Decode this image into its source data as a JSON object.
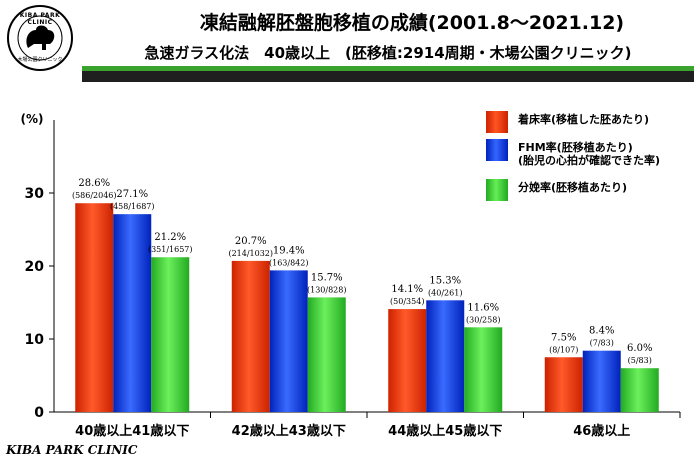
{
  "header": {
    "logo_text": "KIBA PARK CLINIC",
    "logo_subtext": "木場公園クリニック",
    "title": "凍結融解胚盤胞移植の成績(2001.8〜2021.12)",
    "subtitle": "急速ガラス化法　40歳以上　(胚移植:2914周期・木場公園クリニック)"
  },
  "footer": {
    "text": "KIBA PARK CLINIC"
  },
  "colors": {
    "series1": "#ff3300",
    "series2": "#0033ff",
    "series3": "#33cc33",
    "stripe_green": "#3aa32e",
    "stripe_dark": "#1f1f1f"
  },
  "legend": [
    {
      "line1": "着床率(移植した胚あたり)",
      "line2": ""
    },
    {
      "line1": "FHM率(胚移植あたり)",
      "line2": "(胎児の心拍が確認できた率)"
    },
    {
      "line1": "分娩率(胚移植あたり)",
      "line2": ""
    }
  ],
  "chart_data": {
    "type": "bar",
    "ylabel": "(%)",
    "ylim": [
      0,
      40
    ],
    "yticks": [
      0,
      10,
      20,
      30
    ],
    "grid": false,
    "legend_position": "top-right",
    "categories": [
      "40歳以上41歳以下",
      "42歳以上43歳以下",
      "44歳以上45歳以下",
      "46歳以上"
    ],
    "series": [
      {
        "name": "着床率(移植した胚あたり)",
        "color": "#ff3300",
        "values": [
          28.6,
          20.7,
          14.1,
          7.5
        ],
        "labels": [
          "28.6%",
          "20.7%",
          "14.1%",
          "7.5%"
        ],
        "counts": [
          "(586/2046)",
          "(214/1032)",
          "(50/354)",
          "(8/107)"
        ]
      },
      {
        "name": "FHM率(胚移植あたり)",
        "color": "#0033ff",
        "values": [
          27.1,
          19.4,
          15.3,
          8.4
        ],
        "labels": [
          "27.1%",
          "19.4%",
          "15.3%",
          "8.4%"
        ],
        "counts": [
          "(458/1687)",
          "(163/842)",
          "(40/261)",
          "(7/83)"
        ]
      },
      {
        "name": "分娩率(胚移植あたり)",
        "color": "#33cc33",
        "values": [
          21.2,
          15.7,
          11.6,
          6.0
        ],
        "labels": [
          "21.2%",
          "15.7%",
          "11.6%",
          "6.0%"
        ],
        "counts": [
          "(351/1657)",
          "(130/828)",
          "(30/258)",
          "(5/83)"
        ]
      }
    ]
  }
}
